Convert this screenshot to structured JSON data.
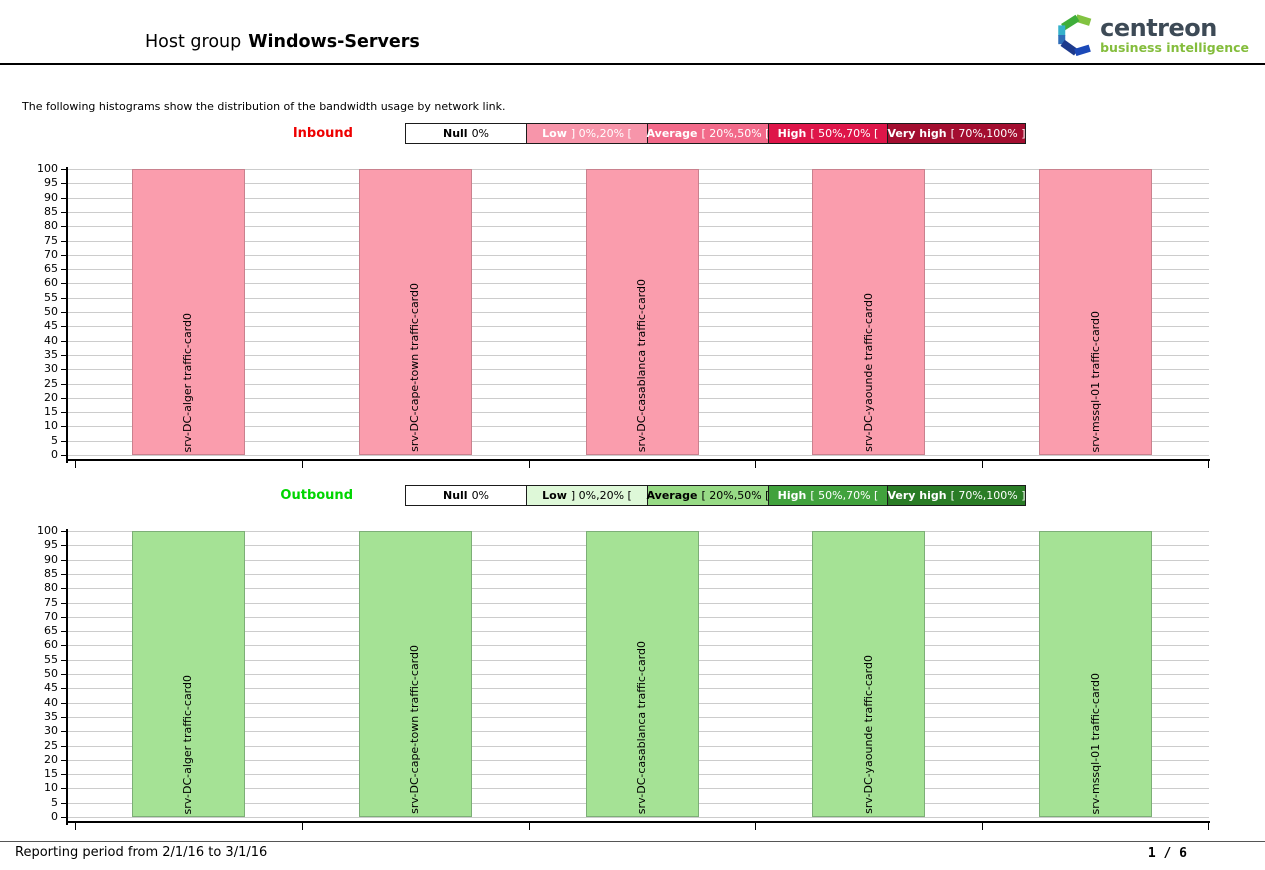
{
  "header": {
    "title_prefix": "Host group",
    "title_bold": "Windows-Servers"
  },
  "logo": {
    "brand": "centreon",
    "tagline": "business intelligence",
    "brand_color": "#3d4a56",
    "tagline_color": "#84bd3c"
  },
  "description": "The following histograms show the distribution of the bandwidth usage by network link.",
  "chart_data": [
    {
      "type": "bar",
      "title": "Inbound",
      "title_color": "#ee0000",
      "categories": [
        "srv-DC-alger traffic-card0",
        "srv-DC-cape-town traffic-card0",
        "srv-DC-casablanca traffic-card0",
        "srv-DC-yaounde traffic-card0",
        "srv-mssql-01 traffic-card0"
      ],
      "values": [
        100,
        100,
        100,
        100,
        100
      ],
      "ylim": [
        0,
        100
      ],
      "ytick_step": 5,
      "grid": true,
      "legend_position": "top",
      "bar_fill": "#fa9dad",
      "bar_border": "#c9818e",
      "legend": [
        {
          "label": "Null",
          "range": "0%",
          "bg": "#ffffff",
          "fg": "#000000"
        },
        {
          "label": "Low",
          "range": "] 0%,20% [",
          "bg": "#f795aa",
          "fg": "#ffffff"
        },
        {
          "label": "Average",
          "range": "[ 20%,50% [",
          "bg": "#f26a8a",
          "fg": "#ffffff"
        },
        {
          "label": "High",
          "range": "[ 50%,70% [",
          "bg": "#de1549",
          "fg": "#ffffff"
        },
        {
          "label": "Very high",
          "range": "[ 70%,100% ]",
          "bg": "#a30e30",
          "fg": "#ffffff"
        }
      ]
    },
    {
      "type": "bar",
      "title": "Outbound",
      "title_color": "#00d500",
      "categories": [
        "srv-DC-alger traffic-card0",
        "srv-DC-cape-town traffic-card0",
        "srv-DC-casablanca traffic-card0",
        "srv-DC-yaounde traffic-card0",
        "srv-mssql-01 traffic-card0"
      ],
      "values": [
        100,
        100,
        100,
        100,
        100
      ],
      "ylim": [
        0,
        100
      ],
      "ytick_step": 5,
      "grid": true,
      "legend_position": "top",
      "bar_fill": "#a5e295",
      "bar_border": "#7dae77",
      "legend": [
        {
          "label": "Null",
          "range": "0%",
          "bg": "#ffffff",
          "fg": "#000000"
        },
        {
          "label": "Low",
          "range": "] 0%,20% [",
          "bg": "#def8d8",
          "fg": "#000000"
        },
        {
          "label": "Average",
          "range": "[ 20%,50% [",
          "bg": "#97da85",
          "fg": "#000000"
        },
        {
          "label": "High",
          "range": "[ 50%,70% [",
          "bg": "#41a23d",
          "fg": "#ffffff"
        },
        {
          "label": "Very high",
          "range": "[ 70%,100% ]",
          "bg": "#2a7c26",
          "fg": "#ffffff"
        }
      ]
    }
  ],
  "footer": {
    "reporting_period": "Reporting period from 2/1/16 to 3/1/16",
    "page": "1 / 6"
  }
}
